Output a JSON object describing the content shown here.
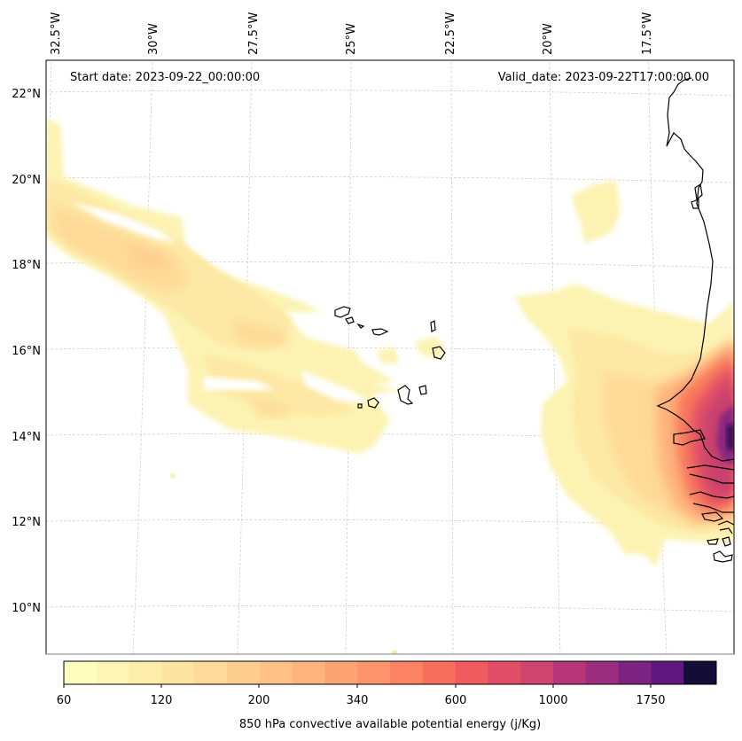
{
  "map": {
    "start_date": "Start date: 2023-09-22_00:00:00",
    "valid_date": "Valid_date: 2023-09-22T17:00:00.00",
    "lon_labels": [
      "32.5°W",
      "30°W",
      "27.5°W",
      "25°W",
      "22.5°W",
      "20°W",
      "17.5°W"
    ],
    "lat_labels": [
      "22°N",
      "20°N",
      "18°N",
      "16°N",
      "14°N",
      "12°N",
      "10°N"
    ]
  },
  "colorbar": {
    "label": "850 hPa convective available potential energy (j/Kg)",
    "ticks": [
      "60",
      "120",
      "200",
      "340",
      "600",
      "1000",
      "1750"
    ],
    "colors": [
      "#fcfdbf",
      "#fcf5b5",
      "#fcedaa",
      "#fde4a0",
      "#fdd99a",
      "#fece91",
      "#fec287",
      "#feb47d",
      "#fea473",
      "#fd946b",
      "#fb8262",
      "#f76f5c",
      "#ef5b5e",
      "#e14d66",
      "#ce446e",
      "#b63679",
      "#9b2d7f",
      "#7c2382",
      "#5f187f",
      "#140e36"
    ]
  }
}
